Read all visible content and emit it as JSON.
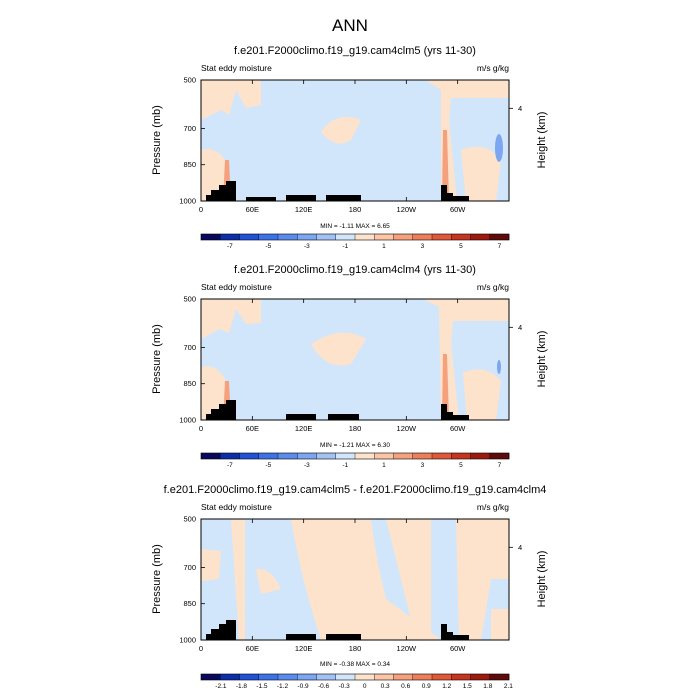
{
  "figure": {
    "title": "ANN"
  },
  "chart_data": [
    {
      "type": "heatmap",
      "title": "f.e201.F2000climo.f19_g19.cam4clm5 (yrs 11-30)",
      "left_label": "Stat eddy moisture",
      "right_label": "m/s g/kg",
      "ylabel": "Pressure (mb)",
      "ylabel_right": "Height (km)",
      "x_ticks": [
        "0",
        "60E",
        "120E",
        "180",
        "120W",
        "60W"
      ],
      "x_tick_values": [
        0,
        60,
        120,
        180,
        240,
        300
      ],
      "x_range": [
        0,
        360
      ],
      "y_ticks": [
        "500",
        "700",
        "850",
        "1000"
      ],
      "y_tick_values": [
        500,
        700,
        850,
        1000
      ],
      "y_range": [
        500,
        1000
      ],
      "height_ticks": [
        "4"
      ],
      "height_tick_pressure": [
        617
      ],
      "stats": "MIN =  -1.11   MAX =   6.65",
      "colorbar_labels": [
        "-7",
        "-5",
        "-3",
        "-1",
        "1",
        "3",
        "5",
        "7"
      ],
      "colorbar_levels": [
        -8,
        -7,
        -6,
        -5,
        -4,
        -3,
        -2,
        -1,
        0,
        1,
        2,
        3,
        4,
        5,
        6,
        7,
        8
      ]
    },
    {
      "type": "heatmap",
      "title": "f.e201.F2000climo.f19_g19.cam4clm4 (yrs 11-30)",
      "left_label": "Stat eddy moisture",
      "right_label": "m/s g/kg",
      "ylabel": "Pressure (mb)",
      "ylabel_right": "Height (km)",
      "x_ticks": [
        "0",
        "60E",
        "120E",
        "180",
        "120W",
        "60W"
      ],
      "x_tick_values": [
        0,
        60,
        120,
        180,
        240,
        300
      ],
      "x_range": [
        0,
        360
      ],
      "y_ticks": [
        "500",
        "700",
        "850",
        "1000"
      ],
      "y_tick_values": [
        500,
        700,
        850,
        1000
      ],
      "y_range": [
        500,
        1000
      ],
      "height_ticks": [
        "4"
      ],
      "height_tick_pressure": [
        617
      ],
      "stats": "MIN =  -1.21   MAX =   6.30",
      "colorbar_labels": [
        "-7",
        "-5",
        "-3",
        "-1",
        "1",
        "3",
        "5",
        "7"
      ],
      "colorbar_levels": [
        -8,
        -7,
        -6,
        -5,
        -4,
        -3,
        -2,
        -1,
        0,
        1,
        2,
        3,
        4,
        5,
        6,
        7,
        8
      ]
    },
    {
      "type": "heatmap",
      "title": "f.e201.F2000climo.f19_g19.cam4clm5 - f.e201.F2000climo.f19_g19.cam4clm4",
      "left_label": "Stat eddy moisture",
      "right_label": "m/s g/kg",
      "ylabel": "Pressure (mb)",
      "ylabel_right": "Height (km)",
      "x_ticks": [
        "0",
        "60E",
        "120E",
        "180",
        "120W",
        "60W"
      ],
      "x_tick_values": [
        0,
        60,
        120,
        180,
        240,
        300
      ],
      "x_range": [
        0,
        360
      ],
      "y_ticks": [
        "500",
        "700",
        "850",
        "1000"
      ],
      "y_tick_values": [
        500,
        700,
        850,
        1000
      ],
      "y_range": [
        500,
        1000
      ],
      "height_ticks": [
        "4"
      ],
      "height_tick_pressure": [
        617
      ],
      "stats": "MIN =  -0.38   MAX =   0.34",
      "colorbar_labels": [
        "-2.1",
        "-1.8",
        "-1.5",
        "-1.2",
        "-0.9",
        "-0.6",
        "-0.3",
        "0",
        "0.3",
        "0.6",
        "0.9",
        "1.2",
        "1.5",
        "1.8",
        "2.1"
      ],
      "colorbar_levels": [
        -2.4,
        -2.1,
        -1.8,
        -1.5,
        -1.2,
        -0.9,
        -0.6,
        -0.3,
        0,
        0.3,
        0.6,
        0.9,
        1.2,
        1.5,
        1.8,
        2.1,
        2.4
      ]
    }
  ],
  "colors": {
    "colorbar": [
      "#08085c",
      "#0c2fa8",
      "#1f52d6",
      "#3b73e6",
      "#5a8ceb",
      "#7ca6f0",
      "#a2c2f5",
      "#d2e6fb",
      "#fde3cc",
      "#fbc5a6",
      "#f6a17e",
      "#ee7d5a",
      "#df5838",
      "#c6351f",
      "#9c1a10",
      "#5f0b0b"
    ],
    "field_negative": "#d2e6fb",
    "field_positive": "#fde3cc",
    "field_strong_positive": "#f6a17e",
    "field_strong_negative": "#7ca6f0",
    "topography": "#000000"
  }
}
